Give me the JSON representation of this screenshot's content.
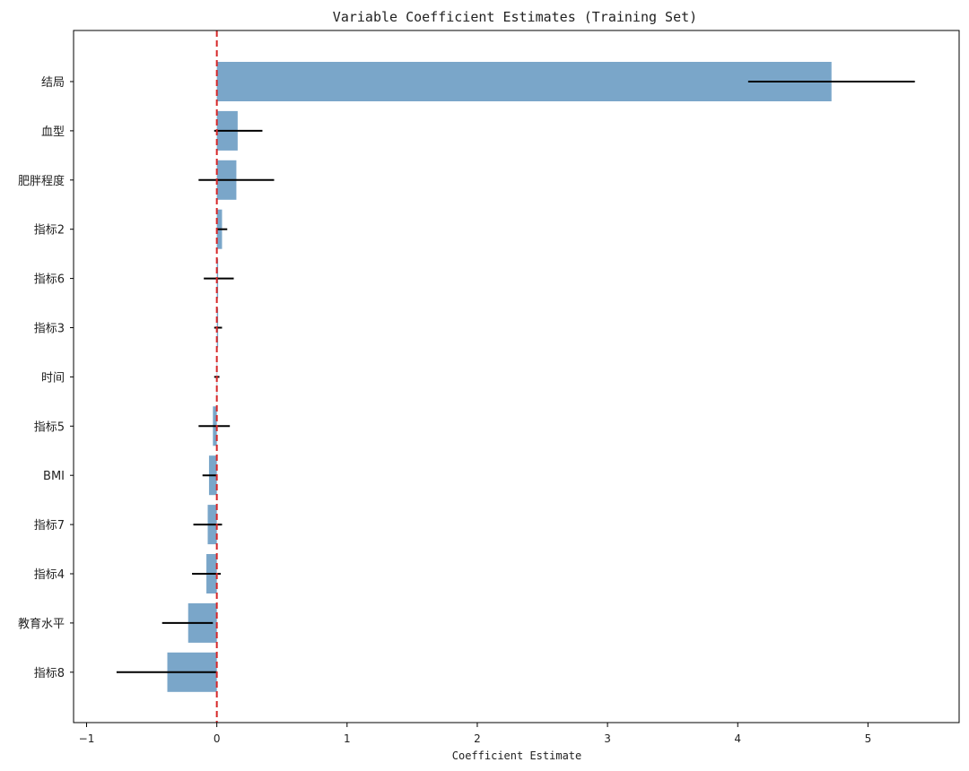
{
  "chart_data": {
    "type": "bar",
    "orientation": "horizontal",
    "title": "Variable Coefficient Estimates (Training Set)",
    "xlabel": "Coefficient Estimate",
    "ylabel": "",
    "xlim": [
      -1.1,
      5.7
    ],
    "xticks": [
      -1,
      0,
      1,
      2,
      3,
      4,
      5
    ],
    "grid": false,
    "reference_line": {
      "x": 0,
      "style": "dashed",
      "color": "#d62728"
    },
    "bar_color": "#7aa6c9",
    "errorbar_color": "#000000",
    "categories": [
      "结局",
      "血型",
      "肥胖程度",
      "指标2",
      "指标6",
      "指标3",
      "时间",
      "指标5",
      "BMI",
      "指标7",
      "指标4",
      "教育水平",
      "指标8"
    ],
    "values": [
      4.72,
      0.16,
      0.15,
      0.04,
      0.01,
      0.01,
      0.0,
      -0.03,
      -0.06,
      -0.07,
      -0.08,
      -0.22,
      -0.38
    ],
    "ci_lower": [
      4.08,
      -0.02,
      -0.14,
      0.0,
      -0.1,
      -0.02,
      -0.02,
      -0.14,
      -0.11,
      -0.18,
      -0.19,
      -0.42,
      -0.77
    ],
    "ci_upper": [
      5.36,
      0.35,
      0.44,
      0.08,
      0.13,
      0.04,
      0.02,
      0.1,
      0.0,
      0.04,
      0.03,
      -0.03,
      0.0
    ]
  }
}
